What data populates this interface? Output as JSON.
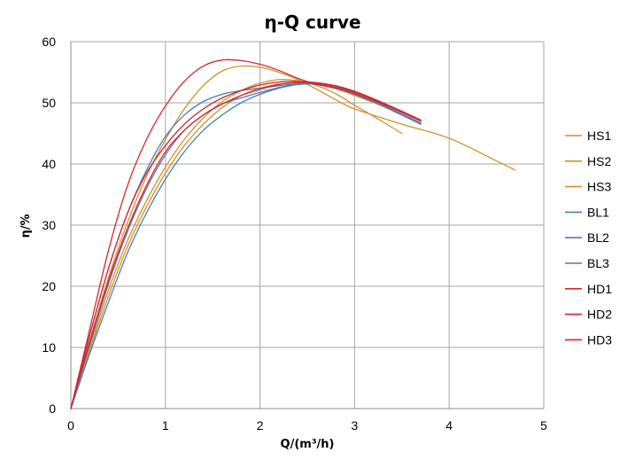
{
  "chart_data": {
    "type": "line",
    "title": "η-Q  curve",
    "xlabel": "Q/(m³/h)",
    "ylabel": "η/%",
    "xlim": [
      0,
      5
    ],
    "ylim": [
      0,
      60
    ],
    "x_ticks": [
      "0",
      "1",
      "2",
      "3",
      "4",
      "5"
    ],
    "y_ticks": [
      "0",
      "10",
      "20",
      "30",
      "40",
      "50",
      "60"
    ],
    "grid": true,
    "legend_position": "right",
    "series": [
      {
        "name": "HS1",
        "color": "#d4902c",
        "points": [
          [
            0,
            0
          ],
          [
            0.2,
            10
          ],
          [
            0.4,
            19.5
          ],
          [
            0.6,
            27.5
          ],
          [
            0.8,
            34
          ],
          [
            1.0,
            39.5
          ],
          [
            1.2,
            44
          ],
          [
            1.4,
            47.5
          ],
          [
            1.6,
            50.2
          ],
          [
            1.8,
            52
          ],
          [
            2.0,
            53.2
          ],
          [
            2.2,
            53.8
          ],
          [
            2.4,
            53.6
          ],
          [
            2.6,
            52.8
          ],
          [
            2.8,
            51.5
          ],
          [
            3.0,
            49.6
          ],
          [
            3.2,
            47.8
          ],
          [
            3.5,
            45
          ]
        ]
      },
      {
        "name": "HS2",
        "color": "#d4902c",
        "points": [
          [
            0,
            0
          ],
          [
            0.2,
            11
          ],
          [
            0.4,
            21.5
          ],
          [
            0.6,
            30.5
          ],
          [
            0.8,
            38
          ],
          [
            1.0,
            44
          ],
          [
            1.2,
            49
          ],
          [
            1.4,
            52.8
          ],
          [
            1.6,
            55.2
          ],
          [
            1.8,
            56
          ],
          [
            2.0,
            55.8
          ],
          [
            2.2,
            55
          ],
          [
            2.4,
            53.8
          ],
          [
            2.6,
            52.2
          ],
          [
            2.8,
            50.5
          ],
          [
            3.0,
            49
          ],
          [
            3.5,
            46.5
          ],
          [
            4.0,
            44.2
          ],
          [
            4.5,
            40.5
          ],
          [
            4.7,
            39
          ]
        ]
      },
      {
        "name": "HS3",
        "color": "#d4902c",
        "points": [
          [
            0,
            0
          ],
          [
            0.2,
            9.5
          ],
          [
            0.4,
            18.5
          ],
          [
            0.6,
            26.5
          ],
          [
            0.8,
            33
          ],
          [
            1.0,
            38.5
          ],
          [
            1.2,
            43
          ],
          [
            1.4,
            46.5
          ],
          [
            1.6,
            49.2
          ],
          [
            1.8,
            51.2
          ],
          [
            2.0,
            52.4
          ],
          [
            2.2,
            53.1
          ],
          [
            2.4,
            53.3
          ],
          [
            2.6,
            53
          ],
          [
            2.8,
            52.3
          ],
          [
            3.0,
            51.2
          ],
          [
            3.3,
            49.4
          ],
          [
            3.7,
            46.5
          ]
        ]
      },
      {
        "name": "BL1",
        "color": "#4a7ebb",
        "points": [
          [
            0,
            0
          ],
          [
            0.2,
            12
          ],
          [
            0.4,
            23
          ],
          [
            0.6,
            32
          ],
          [
            0.8,
            39
          ],
          [
            1.0,
            44.5
          ],
          [
            1.2,
            48
          ],
          [
            1.4,
            50.2
          ],
          [
            1.6,
            51.4
          ],
          [
            1.8,
            52
          ],
          [
            2.0,
            52.4
          ],
          [
            2.2,
            52.8
          ],
          [
            2.4,
            53.1
          ],
          [
            2.6,
            53
          ],
          [
            2.8,
            52.4
          ],
          [
            3.0,
            51.4
          ],
          [
            3.3,
            49.5
          ],
          [
            3.7,
            46.5
          ]
        ]
      },
      {
        "name": "BL2",
        "color": "#4a7ebb",
        "points": [
          [
            0,
            0
          ],
          [
            0.2,
            10.5
          ],
          [
            0.4,
            20.5
          ],
          [
            0.6,
            29
          ],
          [
            0.8,
            36
          ],
          [
            1.0,
            41.5
          ],
          [
            1.2,
            45.5
          ],
          [
            1.4,
            48
          ],
          [
            1.6,
            49.8
          ],
          [
            1.8,
            50.8
          ],
          [
            2.0,
            51.7
          ],
          [
            2.2,
            52.5
          ],
          [
            2.4,
            53
          ],
          [
            2.6,
            53.1
          ],
          [
            2.8,
            52.6
          ],
          [
            3.0,
            51.6
          ],
          [
            3.3,
            49.6
          ],
          [
            3.7,
            46.7
          ]
        ]
      },
      {
        "name": "BL3",
        "color": "#4a7ebb",
        "points": [
          [
            0,
            0
          ],
          [
            0.2,
            9
          ],
          [
            0.4,
            17.5
          ],
          [
            0.6,
            25.5
          ],
          [
            0.8,
            32
          ],
          [
            1.0,
            37.5
          ],
          [
            1.2,
            42
          ],
          [
            1.4,
            45.5
          ],
          [
            1.6,
            48
          ],
          [
            1.8,
            50
          ],
          [
            2.0,
            51.4
          ],
          [
            2.2,
            52.4
          ],
          [
            2.4,
            53
          ],
          [
            2.6,
            53.1
          ],
          [
            2.8,
            52.6
          ],
          [
            3.0,
            51.6
          ],
          [
            3.3,
            49.6
          ],
          [
            3.7,
            46.6
          ]
        ]
      },
      {
        "name": "HD1",
        "color": "#d6262c",
        "points": [
          [
            0,
            0
          ],
          [
            0.2,
            11
          ],
          [
            0.4,
            21
          ],
          [
            0.6,
            29.5
          ],
          [
            0.8,
            36.5
          ],
          [
            1.0,
            42
          ],
          [
            1.2,
            45.5
          ],
          [
            1.4,
            48
          ],
          [
            1.6,
            49.8
          ],
          [
            1.8,
            51.2
          ],
          [
            2.0,
            52.2
          ],
          [
            2.2,
            53
          ],
          [
            2.4,
            53.3
          ],
          [
            2.6,
            53.2
          ],
          [
            2.8,
            52.7
          ],
          [
            3.0,
            51.8
          ],
          [
            3.3,
            49.9
          ],
          [
            3.7,
            47
          ]
        ]
      },
      {
        "name": "HD2",
        "color": "#d6262c",
        "points": [
          [
            0,
            0
          ],
          [
            0.2,
            13
          ],
          [
            0.4,
            26
          ],
          [
            0.6,
            36.5
          ],
          [
            0.8,
            44
          ],
          [
            1.0,
            49.5
          ],
          [
            1.2,
            53.5
          ],
          [
            1.4,
            56
          ],
          [
            1.6,
            57
          ],
          [
            1.8,
            56.9
          ],
          [
            2.0,
            56.3
          ],
          [
            2.2,
            55.3
          ],
          [
            2.4,
            54
          ],
          [
            2.6,
            53
          ],
          [
            2.8,
            52.4
          ],
          [
            3.0,
            51.5
          ],
          [
            3.3,
            49.8
          ],
          [
            3.7,
            47
          ]
        ]
      },
      {
        "name": "HD3",
        "color": "#d6262c",
        "points": [
          [
            0,
            0
          ],
          [
            0.2,
            12
          ],
          [
            0.4,
            23
          ],
          [
            0.6,
            32
          ],
          [
            0.8,
            38.5
          ],
          [
            1.0,
            43
          ],
          [
            1.2,
            46.5
          ],
          [
            1.4,
            49
          ],
          [
            1.6,
            50.8
          ],
          [
            1.8,
            52
          ],
          [
            2.0,
            52.9
          ],
          [
            2.2,
            53.4
          ],
          [
            2.4,
            53.5
          ],
          [
            2.6,
            53.3
          ],
          [
            2.8,
            52.8
          ],
          [
            3.0,
            51.9
          ],
          [
            3.3,
            50
          ],
          [
            3.7,
            47.2
          ]
        ]
      }
    ]
  }
}
